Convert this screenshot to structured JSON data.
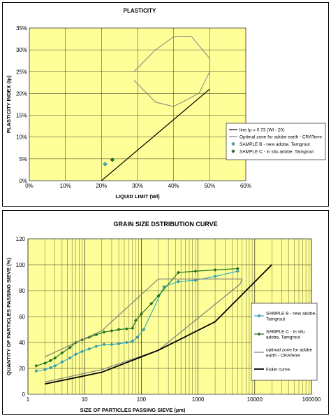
{
  "chart_data": [
    {
      "type": "scatter",
      "title": "PLASTICITY",
      "xlabel": "LIQUID LIMIT (Wl)",
      "ylabel": "PLASTICITY INDEX (Ip)",
      "xlim": [
        0,
        60
      ],
      "ylim": [
        0,
        35
      ],
      "x_ticks": [
        "0%",
        "10%",
        "20%",
        "30%",
        "40%",
        "50%",
        "60%"
      ],
      "y_ticks": [
        "0%",
        "5%",
        "10%",
        "15%",
        "20%",
        "25%",
        "30%",
        "35%"
      ],
      "grid": true,
      "legend_position": "right",
      "series": [
        {
          "name": "line Ip = 0.73 (Wl - 20)",
          "kind": "line",
          "color": "#000000",
          "points": [
            [
              20,
              0
            ],
            [
              50,
              21
            ]
          ]
        },
        {
          "name": "Optimal zone for adobe earth - CRATerre",
          "kind": "line",
          "color": "#808080",
          "points": [
            [
              29,
              25
            ],
            [
              35,
              30
            ],
            [
              40,
              33
            ],
            [
              45,
              33
            ],
            [
              50,
              28
            ],
            [
              50,
              25
            ],
            [
              47,
              20
            ],
            [
              40,
              17
            ],
            [
              35,
              18
            ],
            [
              29,
              23
            ]
          ]
        },
        {
          "name": "SAMPLE B  - new adobe, Tamgrout",
          "kind": "scatter",
          "color": "#33b0c8",
          "points": [
            [
              21,
              3.8
            ]
          ]
        },
        {
          "name": "SAMPLE C - in situ adobe, Tamgrout",
          "kind": "scatter",
          "color": "#1a7a1a",
          "points": [
            [
              23,
              4.8
            ]
          ]
        }
      ]
    },
    {
      "type": "line",
      "title": "GRAIN SIZE DSTRIBUTION CURVE",
      "xlabel": "SIZE OF PARTICLES PASSING SIEVE (µm)",
      "ylabel": "QUANTITY OF PARTICLES PASSING SIEVE (%)",
      "x_scale": "log",
      "xlim": [
        1,
        100000
      ],
      "ylim": [
        0,
        120
      ],
      "x_ticks": [
        "1",
        "10",
        "100",
        "1000",
        "10000",
        "100000"
      ],
      "y_ticks": [
        "0",
        "20",
        "40",
        "60",
        "80",
        "100",
        "120"
      ],
      "grid": true,
      "legend_position": "right",
      "series": [
        {
          "name": "SAMPLE B  - new adobe, Tamgrout",
          "color": "#33b0c8",
          "marker": "diamond",
          "points": [
            [
              1.4,
              18
            ],
            [
              2,
              19
            ],
            [
              2.5,
              20.5
            ],
            [
              3,
              22
            ],
            [
              4,
              25
            ],
            [
              5.5,
              28
            ],
            [
              7,
              31
            ],
            [
              9,
              33
            ],
            [
              12,
              35
            ],
            [
              16,
              37
            ],
            [
              22,
              38.5
            ],
            [
              30,
              38.5
            ],
            [
              40,
              39
            ],
            [
              55,
              40
            ],
            [
              70,
              41
            ],
            [
              85,
              44
            ],
            [
              110,
              50
            ],
            [
              250,
              83
            ],
            [
              450,
              87
            ],
            [
              900,
              88
            ],
            [
              2000,
              91
            ],
            [
              5000,
              95
            ]
          ]
        },
        {
          "name": "SAMPLE C - in situ adobe, Tamgrout",
          "color": "#1a7a1a",
          "marker": "diamond",
          "points": [
            [
              1.4,
              22
            ],
            [
              2,
              24
            ],
            [
              2.5,
              26
            ],
            [
              3,
              28
            ],
            [
              4,
              32
            ],
            [
              5.5,
              36
            ],
            [
              7,
              40
            ],
            [
              9,
              42
            ],
            [
              12,
              44
            ],
            [
              16,
              46
            ],
            [
              22,
              48
            ],
            [
              30,
              49
            ],
            [
              40,
              50
            ],
            [
              55,
              50.5
            ],
            [
              70,
              51
            ],
            [
              80,
              57
            ],
            [
              100,
              62
            ],
            [
              150,
              70
            ],
            [
              200,
              76
            ],
            [
              450,
              94
            ],
            [
              900,
              95
            ],
            [
              2000,
              96
            ],
            [
              5000,
              97
            ]
          ]
        },
        {
          "name": "optimal zone for adobe earth - CRATerre",
          "color": "#808080",
          "marker": "none",
          "points": [
            [
              2,
              29
            ],
            [
              20,
              49
            ],
            [
              200,
              89
            ],
            [
              6000,
              89
            ],
            [
              5500,
              85
            ],
            [
              200,
              34
            ],
            [
              20,
              19
            ],
            [
              2,
              9.5
            ]
          ]
        },
        {
          "name": "Fuller curve",
          "color": "#000000",
          "marker": "none",
          "points": [
            [
              2,
              8
            ],
            [
              20,
              17
            ],
            [
              200,
              34
            ],
            [
              2000,
              56
            ],
            [
              20000,
              100
            ]
          ]
        }
      ]
    }
  ]
}
